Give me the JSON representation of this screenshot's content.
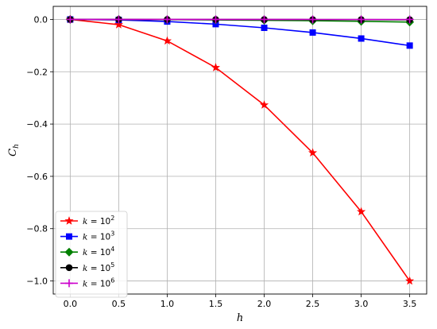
{
  "chart_data": {
    "type": "line",
    "xlabel": "h",
    "ylabel": "C",
    "ylabel_sub": "h",
    "xlim": [
      -0.175,
      3.675
    ],
    "ylim": [
      -1.05,
      0.05
    ],
    "x": [
      0.0,
      0.5,
      1.0,
      1.5,
      2.0,
      2.5,
      3.0,
      3.5
    ],
    "xticks": [
      0.0,
      0.5,
      1.0,
      1.5,
      2.0,
      2.5,
      3.0,
      3.5
    ],
    "xtick_labels": [
      "0.0",
      "0.5",
      "1.0",
      "1.5",
      "2.0",
      "2.5",
      "3.0",
      "3.5"
    ],
    "yticks": [
      0.0,
      -0.2,
      -0.4,
      -0.6,
      -0.8,
      -1.0
    ],
    "ytick_labels": [
      "0.0",
      "−0.2",
      "−0.4",
      "−0.6",
      "−0.8",
      "−1.0"
    ],
    "grid": true,
    "legend_position": "bottom-left",
    "series": [
      {
        "name": "k = 10",
        "exp": "2",
        "color": "#ff0000",
        "marker": "star",
        "values": [
          0.0,
          -0.02,
          -0.082,
          -0.184,
          -0.327,
          -0.51,
          -0.735,
          -1.0
        ]
      },
      {
        "name": "k = 10",
        "exp": "3",
        "color": "#0000ff",
        "marker": "square",
        "values": [
          0.0,
          -0.002,
          -0.008,
          -0.018,
          -0.032,
          -0.05,
          -0.073,
          -0.1
        ]
      },
      {
        "name": "k = 10",
        "exp": "4",
        "color": "#008000",
        "marker": "diamond",
        "values": [
          0.0,
          -0.0002,
          -0.0008,
          -0.0018,
          -0.0033,
          -0.005,
          -0.0073,
          -0.01
        ]
      },
      {
        "name": "k = 10",
        "exp": "5",
        "color": "#000000",
        "marker": "circle",
        "values": [
          0.0,
          0.0,
          -0.0001,
          -0.0002,
          -0.0003,
          -0.0005,
          -0.0007,
          -0.001
        ]
      },
      {
        "name": "k = 10",
        "exp": "6",
        "color": "#cc00cc",
        "marker": "plus",
        "values": [
          0.0,
          0.0,
          0.0,
          0.0,
          0.0,
          -0.0001,
          -0.0001,
          -0.0001
        ]
      }
    ]
  }
}
